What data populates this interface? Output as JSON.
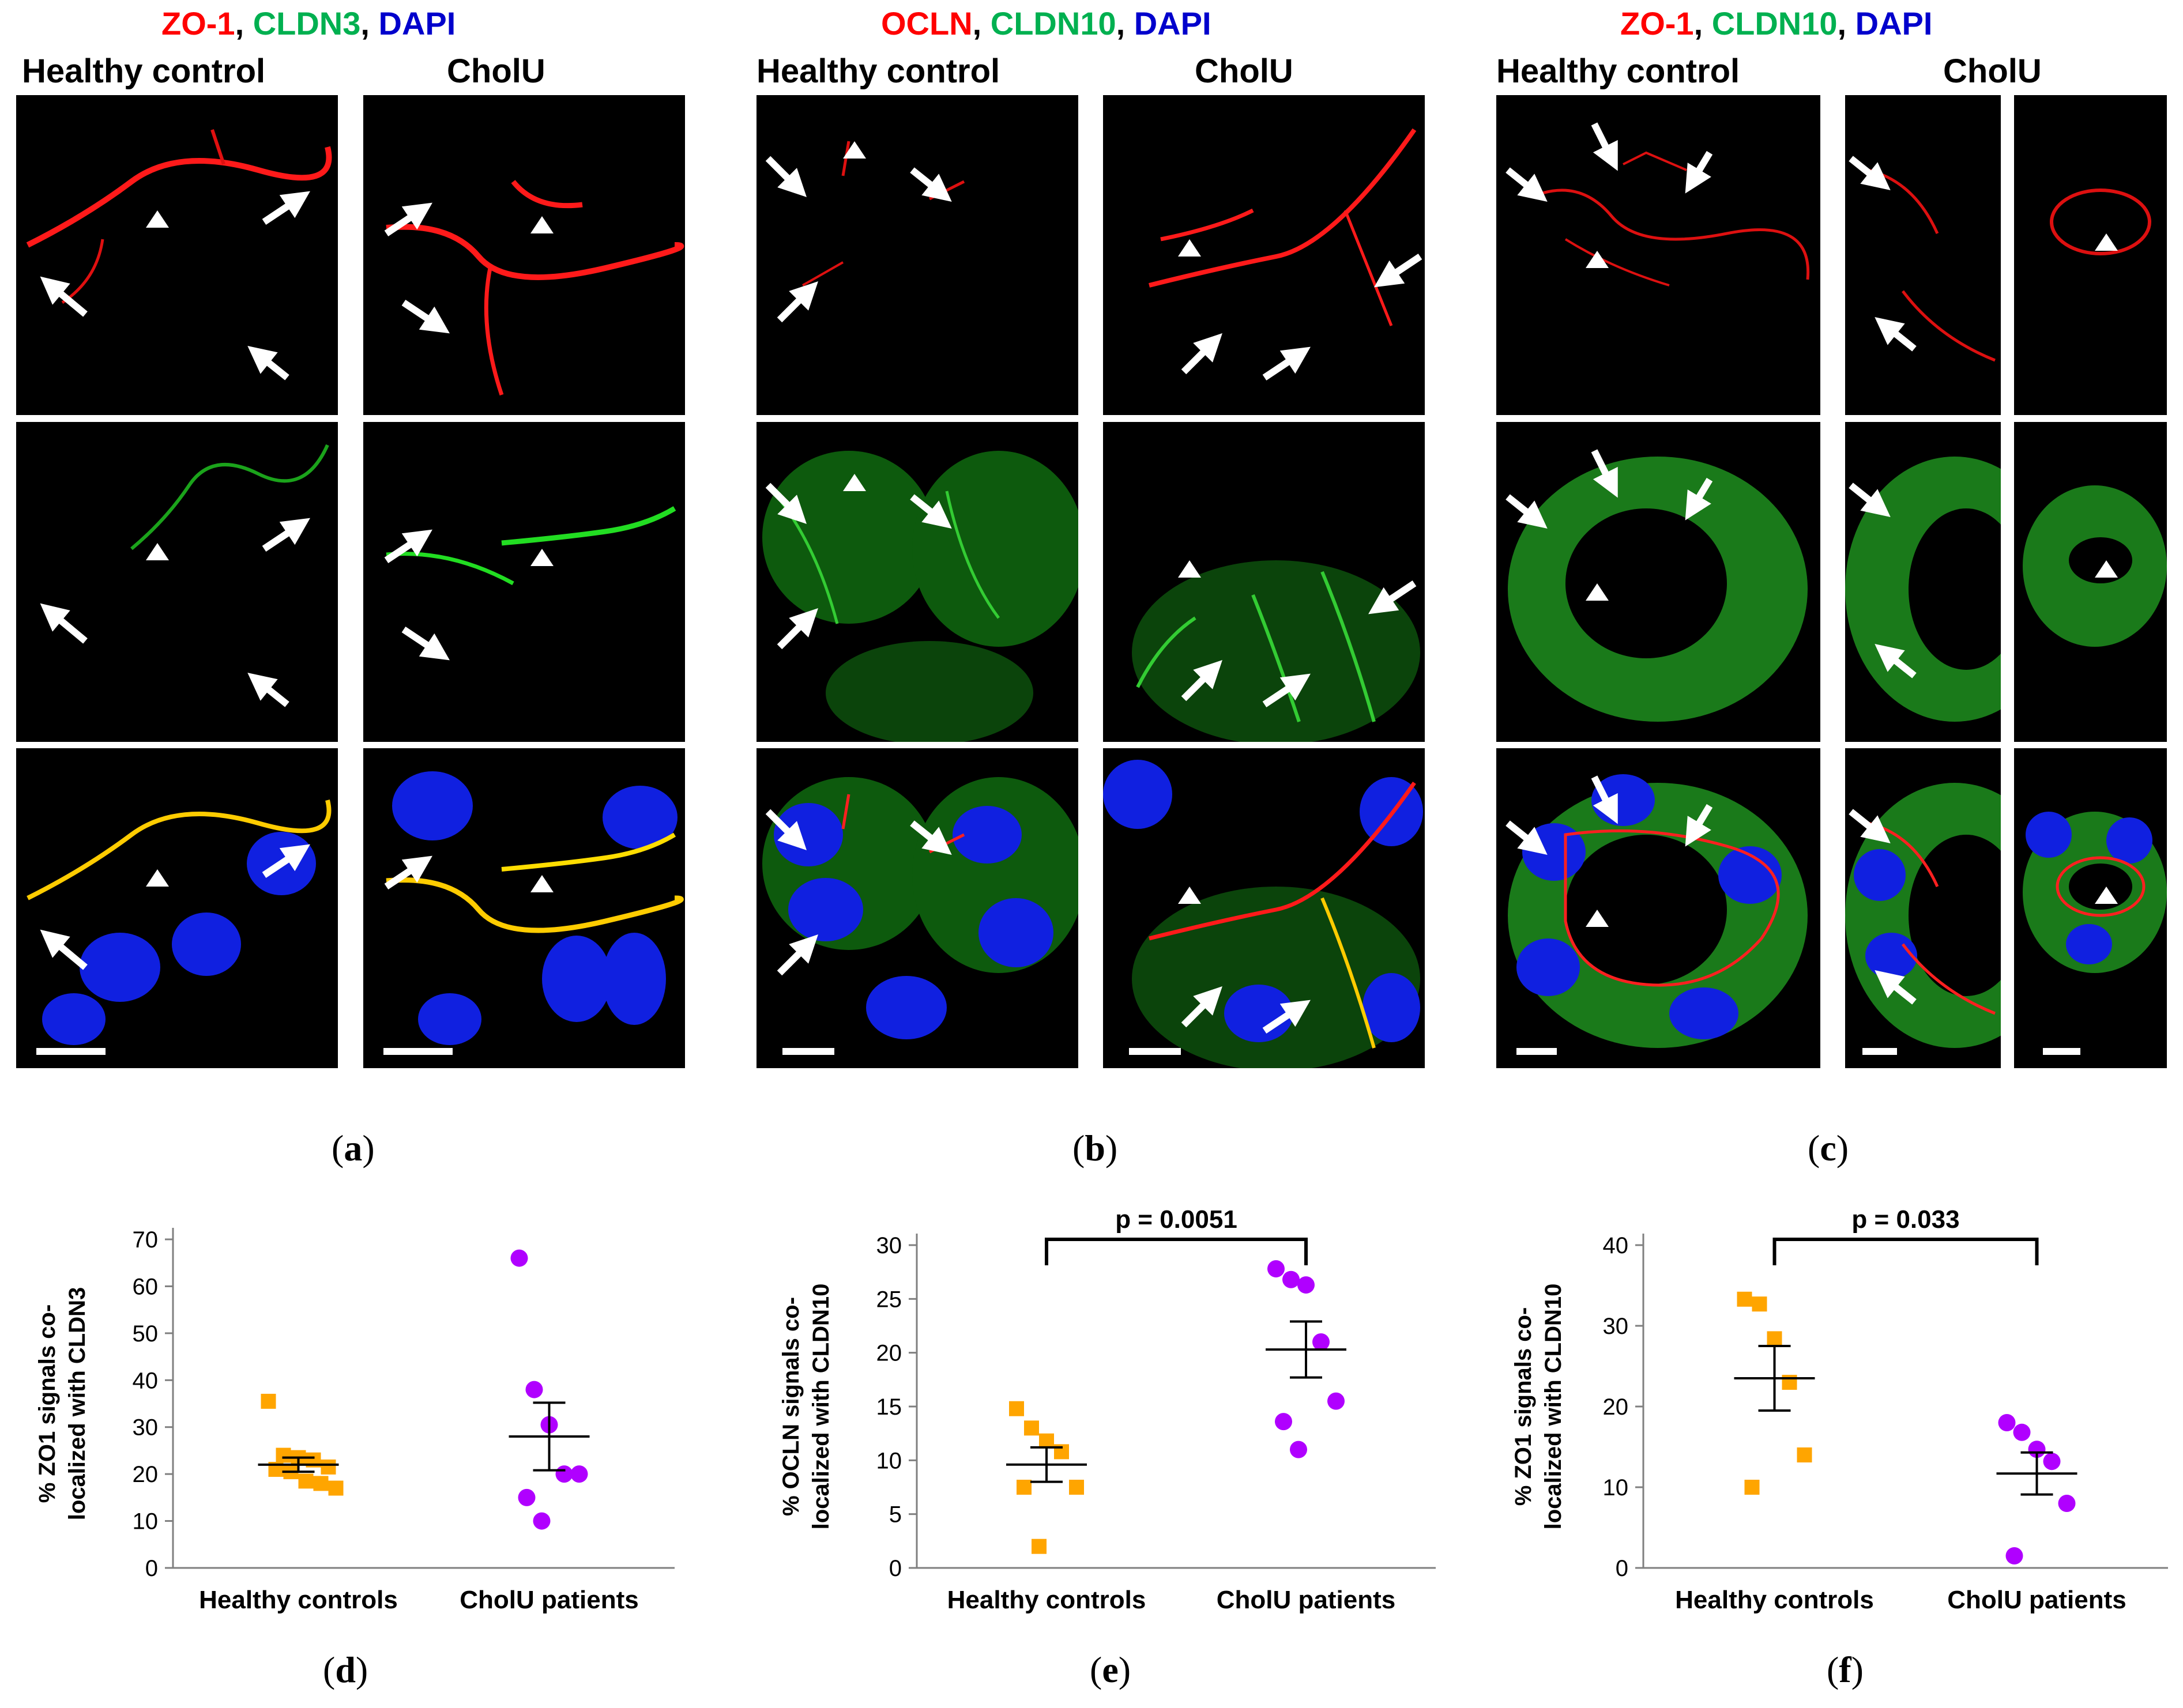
{
  "figure_a": {
    "title_parts": [
      {
        "text": "ZO-1",
        "color": "#ff0000"
      },
      {
        "text": ", ",
        "color": "#000000"
      },
      {
        "text": "CLDN3",
        "color": "#00b050"
      },
      {
        "text": ", ",
        "color": "#000000"
      },
      {
        "text": "DAPI",
        "color": "#0000cc"
      }
    ],
    "col_labels": [
      "Healthy control",
      "CholU"
    ],
    "label_letter": "a"
  },
  "figure_b": {
    "title_parts": [
      {
        "text": "OCLN",
        "color": "#ff0000"
      },
      {
        "text": ", ",
        "color": "#000000"
      },
      {
        "text": "CLDN10",
        "color": "#00b050"
      },
      {
        "text": ", ",
        "color": "#000000"
      },
      {
        "text": "DAPI",
        "color": "#0000cc"
      }
    ],
    "col_labels": [
      "Healthy control",
      "CholU"
    ],
    "label_letter": "b"
  },
  "figure_c": {
    "title_parts": [
      {
        "text": "ZO-1",
        "color": "#ff0000"
      },
      {
        "text": ", ",
        "color": "#000000"
      },
      {
        "text": "CLDN10",
        "color": "#00b050"
      },
      {
        "text": ", ",
        "color": "#000000"
      },
      {
        "text": "DAPI",
        "color": "#0000cc"
      }
    ],
    "col_labels": [
      "Healthy control",
      "CholU"
    ],
    "label_letter": "c"
  },
  "chart_data": [
    {
      "type": "scatter",
      "label_letter": "d",
      "ylabel_lines": [
        "% ZO1 signals co-",
        "localized with CLDN3"
      ],
      "ylim": [
        0,
        70
      ],
      "yticks": [
        0,
        10,
        20,
        30,
        40,
        50,
        60,
        70
      ],
      "categories": [
        "Healthy controls",
        "CholU patients"
      ],
      "series": [
        {
          "name": "Healthy controls",
          "marker": "square",
          "color": "#ffa500",
          "values": [
            35.5,
            24,
            23.5,
            23,
            21.5,
            21,
            20.5,
            18.5,
            18,
            17
          ],
          "mean": 22,
          "sem": 1.5
        },
        {
          "name": "CholU patients",
          "marker": "circle",
          "color": "#b000ff",
          "values": [
            66,
            38,
            30.5,
            20,
            20,
            15,
            10
          ],
          "mean": 28,
          "sem": 7.2
        }
      ],
      "significance": null
    },
    {
      "type": "scatter",
      "label_letter": "e",
      "ylabel_lines": [
        "% OCLN signals co-",
        "localized with CLDN10"
      ],
      "ylim": [
        0,
        30
      ],
      "yticks": [
        0,
        5,
        10,
        15,
        20,
        25,
        30
      ],
      "categories": [
        "Healthy controls",
        "CholU patients"
      ],
      "series": [
        {
          "name": "Healthy controls",
          "marker": "square",
          "color": "#ffa500",
          "values": [
            14.8,
            13,
            11.8,
            10.8,
            7.5,
            7.5,
            2
          ],
          "mean": 9.6,
          "sem": 1.6
        },
        {
          "name": "CholU patients",
          "marker": "circle",
          "color": "#b000ff",
          "values": [
            27.8,
            26.8,
            26.3,
            21,
            15.5,
            13.6,
            11
          ],
          "mean": 20.3,
          "sem": 2.6
        }
      ],
      "significance": "p = 0.0051"
    },
    {
      "type": "scatter",
      "label_letter": "f",
      "ylabel_lines": [
        "% ZO1 signals co-",
        "localized with CLDN10"
      ],
      "ylim": [
        0,
        40
      ],
      "yticks": [
        0,
        10,
        20,
        30,
        40
      ],
      "categories": [
        "Healthy controls",
        "CholU patients"
      ],
      "series": [
        {
          "name": "Healthy controls",
          "marker": "square",
          "color": "#ffa500",
          "values": [
            33.3,
            32.7,
            28.4,
            23,
            14,
            10
          ],
          "mean": 23.5,
          "sem": 4.0
        },
        {
          "name": "CholU patients",
          "marker": "circle",
          "color": "#b000ff",
          "values": [
            18,
            16.8,
            14.7,
            13.2,
            8,
            1.5
          ],
          "mean": 11.7,
          "sem": 2.6
        }
      ],
      "significance": "p = 0.033"
    }
  ]
}
